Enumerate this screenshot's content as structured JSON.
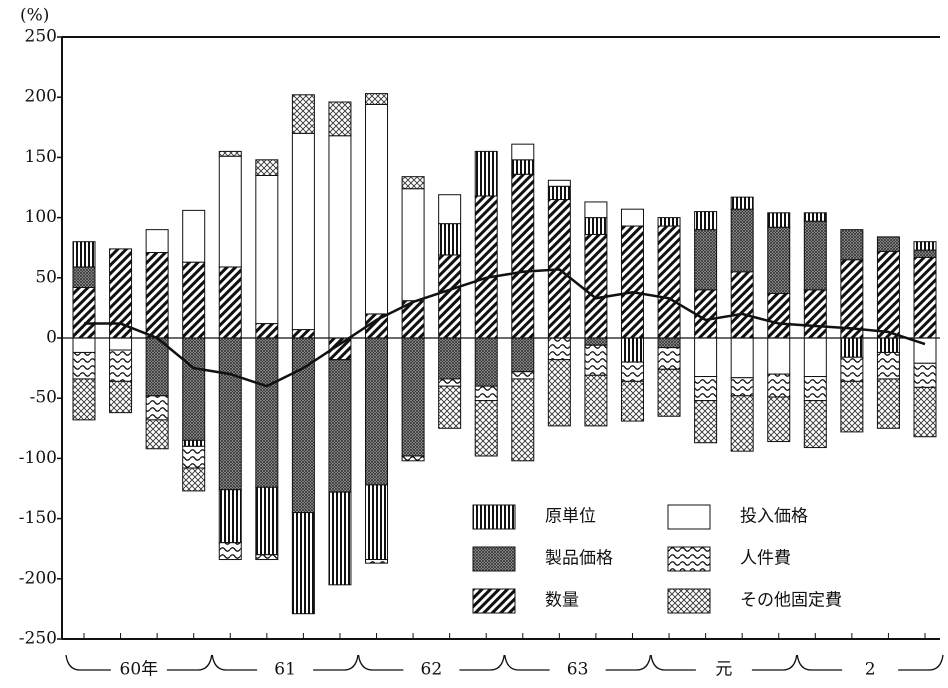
{
  "chart_data": {
    "type": "stacked-bar",
    "y_label": "(%)",
    "ylim": [
      -250,
      250
    ],
    "yticks": [
      -250,
      -200,
      -150,
      -100,
      -50,
      0,
      50,
      100,
      150,
      200,
      250
    ],
    "groups": [
      "60年",
      "61",
      "62",
      "63",
      "元",
      "2"
    ],
    "legend": "lower right",
    "series": [
      {
        "name": "原単位",
        "pattern": "vertical",
        "values": [
          21,
          0,
          0,
          -5,
          -44,
          -56,
          -84,
          -77,
          -62,
          0,
          26,
          37,
          12,
          11,
          14,
          -20,
          7,
          15,
          10,
          12,
          7,
          -16,
          -12,
          7
        ]
      },
      {
        "name": "投入価格",
        "pattern": "blank",
        "values": [
          -12,
          -10,
          19,
          43,
          92,
          123,
          163,
          168,
          174,
          93,
          24,
          0,
          13,
          5,
          13,
          14,
          0,
          -32,
          -33,
          -30,
          -32,
          0,
          0,
          -21
        ]
      },
      {
        "name": "製品価格",
        "pattern": "dense",
        "values": [
          17,
          0,
          -48,
          -85,
          -126,
          -124,
          -145,
          -110,
          -122,
          -98,
          -34,
          -40,
          -28,
          0,
          -6,
          0,
          -8,
          50,
          52,
          55,
          57,
          25,
          12,
          6
        ]
      },
      {
        "name": "人件費",
        "pattern": "wave",
        "values": [
          -22,
          -26,
          -20,
          -18,
          -14,
          -4,
          0,
          0,
          -3,
          -4,
          -6,
          -12,
          -6,
          -18,
          -25,
          -16,
          -18,
          -20,
          -15,
          -19,
          -20,
          -20,
          -22,
          -20
        ]
      },
      {
        "name": "数量",
        "pattern": "diagonal",
        "values": [
          42,
          74,
          71,
          63,
          59,
          12,
          7,
          -18,
          20,
          31,
          69,
          118,
          136,
          115,
          86,
          93,
          93,
          40,
          55,
          37,
          40,
          65,
          72,
          67
        ]
      },
      {
        "name": "その他固定費",
        "pattern": "check",
        "values": [
          -34,
          -26,
          -24,
          -19,
          4,
          13,
          32,
          28,
          9,
          10,
          -35,
          -46,
          -68,
          -55,
          -42,
          -33,
          -39,
          -35,
          -46,
          -37,
          -39,
          -42,
          -41,
          -41
        ]
      }
    ],
    "line": {
      "values": [
        12,
        12,
        0,
        -25,
        -30,
        -40,
        -25,
        -5,
        15,
        30,
        40,
        50,
        55,
        57,
        33,
        38,
        33,
        15,
        20,
        12,
        10,
        8,
        5,
        -5
      ]
    }
  }
}
